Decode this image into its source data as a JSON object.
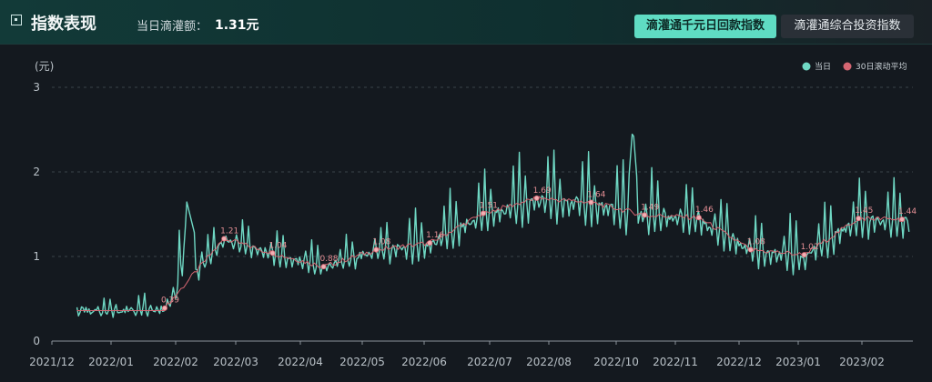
{
  "header": {
    "title": "指数表现",
    "daily_label": "当日滴灌额：",
    "daily_value": "1.31元",
    "tabs": [
      {
        "label": "滴灌通千元日回款指数",
        "active": true
      },
      {
        "label": "滴灌通综合投资指数",
        "active": false
      }
    ]
  },
  "colors": {
    "daily": "#6fd8c4",
    "ma30": "#d56672",
    "accent": "#5fdcc3"
  },
  "chart_data": {
    "type": "line",
    "ylabel": "(元)",
    "ylim": [
      0,
      3
    ],
    "y_ticks": [
      "0",
      "1",
      "2",
      "3"
    ],
    "legend": [
      {
        "name": "当日",
        "color": "#6fd8c4"
      },
      {
        "name": "30日滚动平均",
        "color": "#d56672"
      }
    ],
    "legend_position": "top-right",
    "x_ticks": [
      "2021/12",
      "2022/01",
      "2022/02",
      "2022/03",
      "2022/04",
      "2022/05",
      "2022/06",
      "2022/07",
      "2022/08",
      "2022/10",
      "2022/11",
      "2022/12",
      "2023/01",
      "2023/02"
    ],
    "ma_points": [
      {
        "x": 13.5,
        "y": 0.39,
        "label": "0.39"
      },
      {
        "x": 20.6,
        "y": 1.21,
        "label": "1.21"
      },
      {
        "x": 26.4,
        "y": 1.04,
        "label": "1.04"
      },
      {
        "x": 32.5,
        "y": 0.88,
        "label": "0.88"
      },
      {
        "x": 38.8,
        "y": 1.08,
        "label": "1.08"
      },
      {
        "x": 45.2,
        "y": 1.16,
        "label": "1.16"
      },
      {
        "x": 51.6,
        "y": 1.51,
        "label": "1.51"
      },
      {
        "x": 58.0,
        "y": 1.69,
        "label": "1.69"
      },
      {
        "x": 64.5,
        "y": 1.64,
        "label": "1.64"
      },
      {
        "x": 70.9,
        "y": 1.49,
        "label": "1.49"
      },
      {
        "x": 77.4,
        "y": 1.46,
        "label": "1.46"
      },
      {
        "x": 83.6,
        "y": 1.08,
        "label": "1.08"
      },
      {
        "x": 90.0,
        "y": 1.02,
        "label": "1.02"
      },
      {
        "x": 96.5,
        "y": 1.45,
        "label": "1.45"
      },
      {
        "x": 101.7,
        "y": 1.44,
        "label": "1.44"
      }
    ]
  }
}
